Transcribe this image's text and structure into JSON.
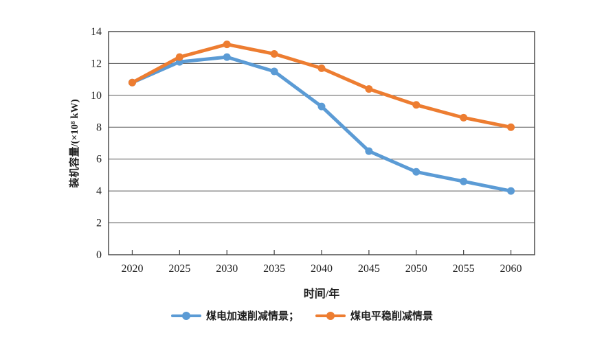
{
  "figure": {
    "background": "#ffffff",
    "axis_color": "#404040",
    "grid_color": "#595959",
    "tick_label_color": "#1f1f1f"
  },
  "chart_data": {
    "type": "line",
    "title": "",
    "x_categories": [
      "2020",
      "2025",
      "2030",
      "2035",
      "2040",
      "2045",
      "2050",
      "2055",
      "2060"
    ],
    "series": [
      {
        "name": "coal-accelerated-reduction-scenario",
        "legend_label": "煤电加速削减情景；",
        "color": "#5B9BD5",
        "values": [
          10.8,
          12.1,
          12.4,
          11.5,
          9.3,
          6.5,
          5.2,
          4.6,
          4.0
        ]
      },
      {
        "name": "coal-steady-reduction-scenario",
        "legend_label": "煤电平稳削减情景",
        "color": "#ED7D31",
        "values": [
          10.8,
          12.4,
          13.2,
          12.6,
          11.7,
          10.4,
          9.4,
          8.6,
          8.0
        ]
      }
    ],
    "xlabel": "时间/年",
    "ylabel": "装机容量/(×10⁸ kW)",
    "ylim": [
      0,
      14
    ],
    "y_ticks": [
      0,
      2,
      4,
      6,
      8,
      10,
      12,
      14
    ],
    "grid": "horizontal",
    "legend_position": "bottom",
    "marker": "circle",
    "line_width": 5,
    "marker_radius": 5.5
  }
}
